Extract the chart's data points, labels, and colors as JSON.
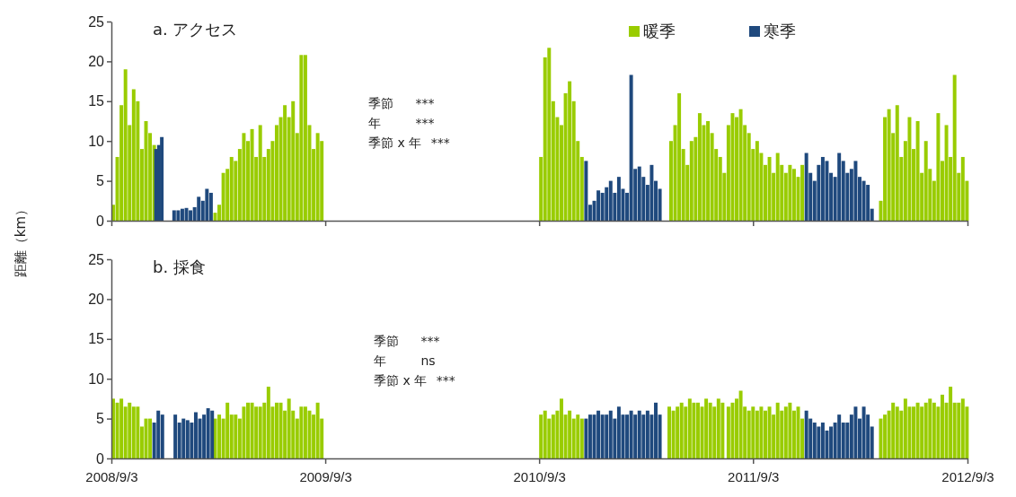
{
  "chart_data": [
    {
      "type": "bar",
      "title": "a. アクセス",
      "ylabel": "距離（km）",
      "xlim": [
        "2008-09-03",
        "2012-09-03"
      ],
      "xticks": [
        {
          "value": "2008-09-03",
          "label": null
        },
        {
          "value": "2009-09-03",
          "label": null
        },
        {
          "value": "2010-09-03",
          "label": null
        },
        {
          "value": "2011-09-03",
          "label": null
        },
        {
          "value": "2012-09-03",
          "label": null
        }
      ],
      "ylim": [
        0,
        25
      ],
      "yticks": [
        0,
        5,
        10,
        15,
        20,
        25
      ],
      "tick_labels": "y",
      "legend": "top right",
      "annotations": [
        "季節 ***",
        "年 ***",
        "季節 x 年 ***"
      ],
      "series": [
        {
          "name": "暖季",
          "color": "#99cc00",
          "x": [
            "2008-09-03",
            "2008-09-10",
            "2008-09-17",
            "2008-09-24",
            "2008-10-01",
            "2008-10-08",
            "2008-10-15",
            "2008-10-22",
            "2008-10-29",
            "2008-11-05",
            "2008-11-12",
            "2009-02-24",
            "2009-03-03",
            "2009-03-10",
            "2009-03-17",
            "2009-03-24",
            "2009-03-31",
            "2009-04-07",
            "2009-04-14",
            "2009-04-21",
            "2009-04-28",
            "2009-05-05",
            "2009-05-12",
            "2009-05-19",
            "2009-05-26",
            "2009-06-02",
            "2009-06-09",
            "2009-06-16",
            "2009-06-23",
            "2009-06-30",
            "2009-07-07",
            "2009-07-14",
            "2009-07-21",
            "2009-07-28",
            "2009-08-04",
            "2009-08-11",
            "2009-08-18",
            "2009-08-25",
            "2010-09-03",
            "2010-09-10",
            "2010-09-17",
            "2010-09-24",
            "2010-10-01",
            "2010-10-08",
            "2010-10-15",
            "2010-10-22",
            "2010-10-29",
            "2010-11-05",
            "2010-11-12",
            "2011-04-13",
            "2011-04-20",
            "2011-04-27",
            "2011-05-04",
            "2011-05-11",
            "2011-05-18",
            "2011-05-25",
            "2011-06-01",
            "2011-06-08",
            "2011-06-15",
            "2011-06-22",
            "2011-06-29",
            "2011-07-06",
            "2011-07-13",
            "2011-07-20",
            "2011-07-27",
            "2011-08-03",
            "2011-08-10",
            "2011-08-17",
            "2011-08-24",
            "2011-08-31",
            "2011-09-07",
            "2011-09-14",
            "2011-09-21",
            "2011-09-28",
            "2011-10-05",
            "2011-10-12",
            "2011-10-19",
            "2011-10-26",
            "2011-11-02",
            "2011-11-09",
            "2011-11-16",
            "2011-11-23",
            "2012-04-05",
            "2012-04-12",
            "2012-04-19",
            "2012-04-26",
            "2012-05-03",
            "2012-05-10",
            "2012-05-17",
            "2012-05-24",
            "2012-05-31",
            "2012-06-07",
            "2012-06-14",
            "2012-06-21",
            "2012-06-28",
            "2012-07-05",
            "2012-07-12",
            "2012-07-19",
            "2012-07-26",
            "2012-08-02",
            "2012-08-09",
            "2012-08-16",
            "2012-08-23",
            "2012-08-30"
          ],
          "values": [
            2,
            8,
            14.5,
            19,
            12,
            16.5,
            15,
            9,
            12.5,
            11,
            9.5,
            1,
            2,
            6,
            6.5,
            8,
            7.5,
            9,
            11,
            10,
            11.5,
            8,
            12,
            8,
            9,
            10,
            12,
            13,
            14.5,
            13,
            15,
            11,
            20.8,
            20.8,
            12,
            9,
            11,
            10,
            8,
            20.5,
            21.7,
            15,
            13,
            12,
            16,
            17.5,
            15,
            10,
            8,
            10,
            12,
            16,
            9,
            7,
            10,
            10.5,
            13.5,
            12,
            12.5,
            11,
            9,
            8,
            6,
            12,
            13.5,
            13,
            14,
            12,
            11,
            9,
            10,
            8.5,
            7,
            8,
            6,
            8.5,
            7,
            6,
            7,
            6.5,
            5.5,
            7,
            2.5,
            13,
            14,
            11,
            14.5,
            8,
            10,
            13,
            9,
            12.5,
            6,
            10,
            6.5,
            5,
            13.5,
            7.5,
            12,
            8,
            18.3,
            6,
            8,
            5
          ]
        },
        {
          "name": "寒季",
          "color": "#1f497d",
          "x": [
            "2008-11-15",
            "2008-11-20",
            "2008-11-25",
            "2008-12-16",
            "2008-12-23",
            "2008-12-30",
            "2009-01-06",
            "2009-01-13",
            "2009-01-20",
            "2009-01-27",
            "2009-02-03",
            "2009-02-10",
            "2009-02-17",
            "2010-11-19",
            "2010-11-26",
            "2010-12-03",
            "2010-12-10",
            "2010-12-17",
            "2010-12-24",
            "2010-12-31",
            "2011-01-07",
            "2011-01-14",
            "2011-01-21",
            "2011-01-28",
            "2011-02-04",
            "2011-02-11",
            "2011-02-18",
            "2011-02-25",
            "2011-03-04",
            "2011-03-11",
            "2011-03-18",
            "2011-03-25",
            "2011-11-30",
            "2011-12-07",
            "2011-12-14",
            "2011-12-21",
            "2011-12-28",
            "2012-01-04",
            "2012-01-11",
            "2012-01-18",
            "2012-01-25",
            "2012-02-01",
            "2012-02-08",
            "2012-02-15",
            "2012-02-22",
            "2012-02-29",
            "2012-03-07",
            "2012-03-14",
            "2012-03-21"
          ],
          "values": [
            9,
            9.5,
            10.5,
            1.3,
            1.3,
            1.5,
            1.6,
            1.3,
            1.7,
            3,
            2.5,
            4,
            3.5,
            7.5,
            2,
            2.5,
            3.8,
            3.5,
            4.2,
            5,
            3.5,
            5.5,
            4,
            3.5,
            18.3,
            6.5,
            6.8,
            5.5,
            4.5,
            7,
            5,
            4,
            8.5,
            6,
            5,
            7,
            8,
            7.5,
            6,
            5.5,
            8.5,
            7.5,
            6,
            6.5,
            7.5,
            5.5,
            5,
            4.5,
            1.5
          ]
        }
      ]
    },
    {
      "type": "bar",
      "title": "b. 採食",
      "xlim": [
        "2008-09-03",
        "2012-09-03"
      ],
      "xticks": [
        {
          "value": "2008-09-03",
          "label": "2008/9/3"
        },
        {
          "value": "2009-09-03",
          "label": "2009/9/3"
        },
        {
          "value": "2010-09-03",
          "label": "2010/9/3"
        },
        {
          "value": "2011-09-03",
          "label": "2011/9/3"
        },
        {
          "value": "2012-09-03",
          "label": "2012/9/3"
        }
      ],
      "ylim": [
        0,
        25
      ],
      "yticks": [
        0,
        5,
        10,
        15,
        20,
        25
      ],
      "annotations": [
        "季節 ***",
        "年 ns",
        "季節 x 年 ***"
      ],
      "series": [
        {
          "color": "#99cc00",
          "x": [
            "2008-09-03",
            "2008-09-10",
            "2008-09-17",
            "2008-09-24",
            "2008-10-01",
            "2008-10-08",
            "2008-10-15",
            "2008-10-22",
            "2008-10-29",
            "2008-11-05",
            "2009-02-24",
            "2009-03-03",
            "2009-03-10",
            "2009-03-17",
            "2009-03-24",
            "2009-03-31",
            "2009-04-07",
            "2009-04-14",
            "2009-04-21",
            "2009-04-28",
            "2009-05-05",
            "2009-05-12",
            "2009-05-19",
            "2009-05-26",
            "2009-06-02",
            "2009-06-09",
            "2009-06-16",
            "2009-06-23",
            "2009-06-30",
            "2009-07-07",
            "2009-07-14",
            "2009-07-21",
            "2009-07-28",
            "2009-08-04",
            "2009-08-11",
            "2009-08-18",
            "2009-08-25",
            "2010-09-03",
            "2010-09-10",
            "2010-09-17",
            "2010-09-24",
            "2010-10-01",
            "2010-10-08",
            "2010-10-15",
            "2010-10-22",
            "2010-10-29",
            "2010-11-05",
            "2010-11-12",
            "2011-04-10",
            "2011-04-17",
            "2011-04-24",
            "2011-05-01",
            "2011-05-08",
            "2011-05-15",
            "2011-05-22",
            "2011-05-29",
            "2011-06-05",
            "2011-06-12",
            "2011-06-19",
            "2011-06-26",
            "2011-07-03",
            "2011-07-10",
            "2011-07-20",
            "2011-07-27",
            "2011-08-03",
            "2011-08-10",
            "2011-08-17",
            "2011-08-24",
            "2011-08-31",
            "2011-09-07",
            "2011-09-14",
            "2011-09-21",
            "2011-09-28",
            "2011-10-05",
            "2011-10-12",
            "2011-10-19",
            "2011-10-26",
            "2011-11-02",
            "2011-11-09",
            "2011-11-16",
            "2011-11-23",
            "2012-04-05",
            "2012-04-12",
            "2012-04-19",
            "2012-04-26",
            "2012-05-03",
            "2012-05-10",
            "2012-05-17",
            "2012-05-24",
            "2012-05-31",
            "2012-06-07",
            "2012-06-14",
            "2012-06-21",
            "2012-06-28",
            "2012-07-05",
            "2012-07-12",
            "2012-07-19",
            "2012-07-26",
            "2012-08-02",
            "2012-08-09",
            "2012-08-16",
            "2012-08-23",
            "2012-08-30"
          ],
          "values": [
            7.5,
            7,
            7.5,
            6.5,
            7,
            6.5,
            6.5,
            4,
            5,
            5,
            5,
            5.5,
            5,
            7,
            5.5,
            5.5,
            5,
            6.5,
            7,
            7,
            6.5,
            6.5,
            7,
            9,
            6.5,
            7,
            7,
            6,
            7.5,
            6,
            5,
            6.5,
            6.5,
            6,
            5.5,
            7,
            5,
            5.5,
            6,
            5,
            5.5,
            6,
            7.5,
            5.5,
            6,
            5,
            5.5,
            5,
            6.5,
            6,
            6.5,
            7,
            6.5,
            7.5,
            7,
            7,
            6.5,
            7.5,
            7,
            6.5,
            7.5,
            7,
            6.5,
            7,
            7.5,
            8.5,
            6.5,
            6,
            6.5,
            6,
            6.5,
            6,
            6.5,
            5.5,
            7,
            6,
            6.5,
            7,
            6,
            6.5,
            5,
            5,
            5.5,
            6,
            7,
            6.5,
            6,
            7.5,
            6.5,
            6.5,
            7,
            6.5,
            7,
            7.5,
            7,
            6.5,
            8,
            7,
            9,
            7,
            7,
            7.5,
            6.5
          ]
        },
        {
          "color": "#1f497d",
          "x": [
            "2008-11-12",
            "2008-11-19",
            "2008-11-26",
            "2008-12-18",
            "2008-12-25",
            "2009-01-01",
            "2009-01-08",
            "2009-01-15",
            "2009-01-22",
            "2009-01-29",
            "2009-02-05",
            "2009-02-12",
            "2009-02-19",
            "2010-11-19",
            "2010-11-26",
            "2010-12-03",
            "2010-12-10",
            "2010-12-17",
            "2010-12-24",
            "2010-12-31",
            "2011-01-07",
            "2011-01-14",
            "2011-01-21",
            "2011-01-28",
            "2011-02-04",
            "2011-02-11",
            "2011-02-18",
            "2011-02-25",
            "2011-03-04",
            "2011-03-11",
            "2011-03-18",
            "2011-03-25",
            "2011-11-30",
            "2011-12-07",
            "2011-12-14",
            "2011-12-21",
            "2011-12-28",
            "2012-01-04",
            "2012-01-11",
            "2012-01-18",
            "2012-01-25",
            "2012-02-01",
            "2012-02-08",
            "2012-02-15",
            "2012-02-22",
            "2012-02-29",
            "2012-03-07",
            "2012-03-14",
            "2012-03-21"
          ],
          "values": [
            4.5,
            6,
            5.5,
            5.5,
            4.5,
            5,
            4.8,
            4.5,
            5.8,
            5,
            5.5,
            6.3,
            6,
            5,
            5.5,
            5.5,
            6,
            5.5,
            5.5,
            6,
            5,
            6.5,
            5.5,
            5.5,
            6,
            5.5,
            6,
            5.5,
            6,
            5.5,
            7,
            5.5,
            6,
            5,
            4.5,
            4,
            4.5,
            3.5,
            4,
            4.5,
            5.5,
            4.5,
            4.5,
            5.5,
            6.5,
            5,
            6.5,
            5.5,
            4
          ]
        }
      ]
    }
  ]
}
